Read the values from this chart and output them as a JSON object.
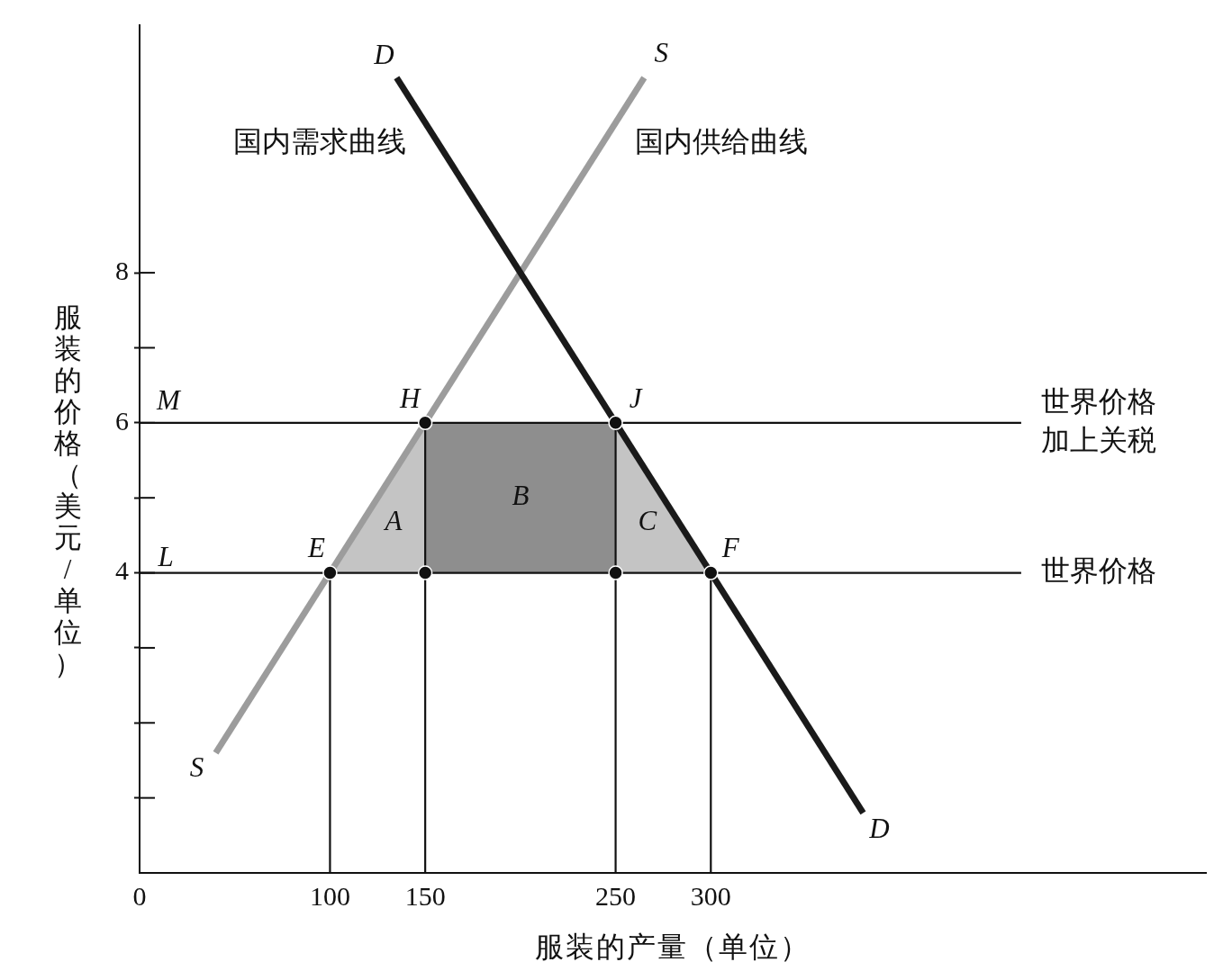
{
  "chart_data": {
    "type": "line",
    "xlabel": "服装的产量（单位）",
    "ylabel": "服装的价格（美元/单位）",
    "xlim": [
      0,
      560
    ],
    "ylim": [
      0,
      11.3
    ],
    "xticks": [
      0,
      100,
      150,
      250,
      300
    ],
    "yticks": [
      {
        "value": 1,
        "label": null
      },
      {
        "value": 2,
        "label": null
      },
      {
        "value": 3,
        "label": null
      },
      4,
      {
        "value": 5,
        "label": null
      },
      6,
      {
        "value": 7,
        "label": null
      },
      8
    ],
    "series": [
      {
        "name": "国内需求曲线",
        "color": "#1a1a1a",
        "x": [
          135,
          380
        ],
        "values": [
          10.6,
          0.8
        ]
      },
      {
        "name": "国内供给曲线",
        "color": "#9c9c9c",
        "x": [
          40,
          265
        ],
        "values": [
          1.6,
          10.6
        ]
      },
      {
        "name": "世界价格加上关税",
        "color": "#111111",
        "x": [
          0,
          463
        ],
        "values": [
          6,
          6
        ]
      },
      {
        "name": "世界价格",
        "color": "#111111",
        "x": [
          0,
          463
        ],
        "values": [
          4,
          4
        ]
      },
      {
        "color": "#111111",
        "x": [
          100,
          100
        ],
        "values": [
          0,
          4
        ]
      },
      {
        "color": "#111111",
        "x": [
          150,
          150
        ],
        "values": [
          0,
          6
        ]
      },
      {
        "color": "#111111",
        "x": [
          250,
          250
        ],
        "values": [
          0,
          6
        ]
      },
      {
        "color": "#111111",
        "x": [
          300,
          300
        ],
        "values": [
          0,
          4
        ]
      },
      {
        "x": [
          100,
          150
        ],
        "values": [
          null,
          null
        ],
        "lower": [
          4,
          4
        ],
        "upper": [
          4,
          6
        ]
      },
      {
        "x": [
          150,
          250
        ],
        "values": [
          null,
          null
        ],
        "lower": [
          4,
          4
        ],
        "upper": [
          6,
          6
        ]
      },
      {
        "x": [
          250,
          300
        ],
        "values": [
          null,
          null
        ],
        "lower": [
          4,
          4
        ],
        "upper": [
          6,
          4
        ]
      },
      {
        "type": "scatter",
        "color": "#111111",
        "marker": "circle",
        "x": [
          100,
          150,
          250,
          300,
          150,
          250
        ],
        "values": [
          4,
          6,
          6,
          4,
          4,
          4
        ]
      }
    ],
    "annotations": [
      {
        "text": "D",
        "x": 135,
        "y": 10.6
      },
      {
        "text": "S",
        "x": 265,
        "y": 10.6
      },
      {
        "text": "S",
        "x": 40,
        "y": 1.6
      },
      {
        "text": "D",
        "x": 380,
        "y": 0.8
      },
      {
        "text": "M",
        "x": 0,
        "y": 6
      },
      {
        "text": "L",
        "x": 0,
        "y": 4
      },
      {
        "text": "H",
        "x": 150,
        "y": 6
      },
      {
        "text": "J",
        "x": 250,
        "y": 6
      },
      {
        "text": "E",
        "x": 100,
        "y": 4
      },
      {
        "text": "F",
        "x": 300,
        "y": 4
      },
      "A",
      "B",
      "C"
    ]
  }
}
